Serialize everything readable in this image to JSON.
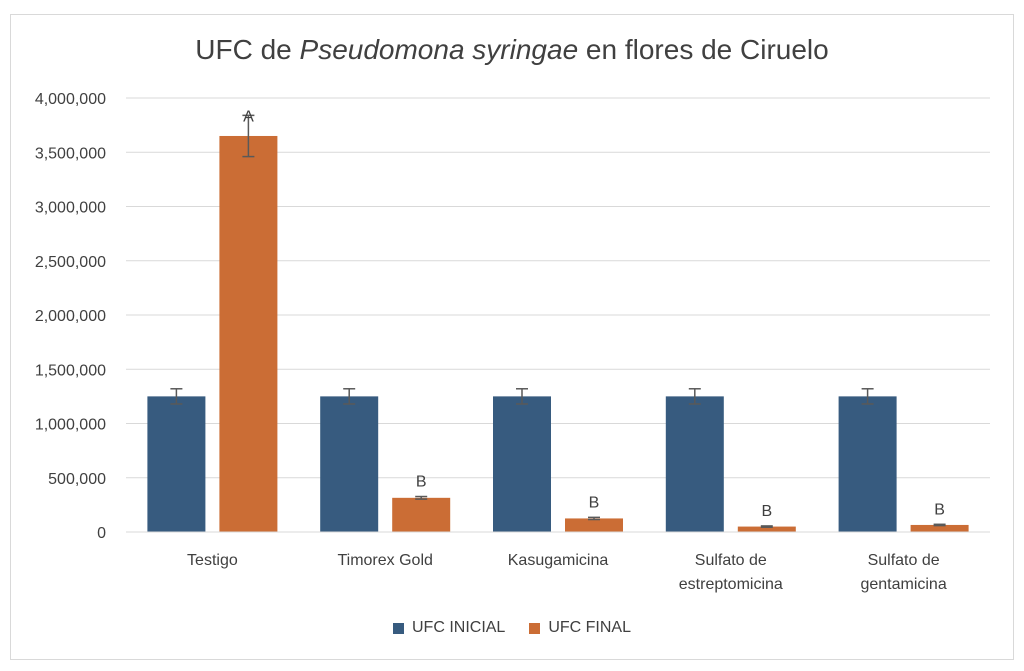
{
  "title": {
    "prefix": "UFC de ",
    "italic": "Pseudomona syringae",
    "suffix": " en flores de Ciruelo"
  },
  "colors": {
    "inicial": "#375b7f",
    "final": "#cb6d35",
    "grid": "#d9d9d9",
    "error": "#595959"
  },
  "chart_data": {
    "type": "bar",
    "title": "UFC de Pseudomona syringae en flores de Ciruelo",
    "xlabel": "",
    "ylabel": "",
    "ylim": [
      0,
      4000000
    ],
    "yticks": [
      0,
      500000,
      1000000,
      1500000,
      2000000,
      2500000,
      3000000,
      3500000,
      4000000
    ],
    "ytick_labels": [
      "0",
      "500,000",
      "1,000,000",
      "1,500,000",
      "2,000,000",
      "2,500,000",
      "3,000,000",
      "3,500,000",
      "4,000,000"
    ],
    "grid": true,
    "legend_position": "bottom",
    "categories": [
      [
        "Testigo"
      ],
      [
        "Timorex Gold"
      ],
      [
        "Kasugamicina"
      ],
      [
        "Sulfato de",
        "estreptomicina"
      ],
      [
        "Sulfato de",
        "gentamicina"
      ]
    ],
    "series": [
      {
        "name": "UFC INICIAL",
        "values": [
          1250000,
          1250000,
          1250000,
          1250000,
          1250000
        ],
        "errors": [
          70000,
          70000,
          70000,
          70000,
          70000
        ],
        "labels": [
          "",
          "",
          "",
          "",
          ""
        ]
      },
      {
        "name": "UFC FINAL",
        "values": [
          3650000,
          315000,
          125000,
          50000,
          65000
        ],
        "errors": [
          190000,
          12000,
          10000,
          6000,
          6000
        ],
        "labels": [
          "A",
          "B",
          "B",
          "B",
          "B"
        ]
      }
    ]
  }
}
